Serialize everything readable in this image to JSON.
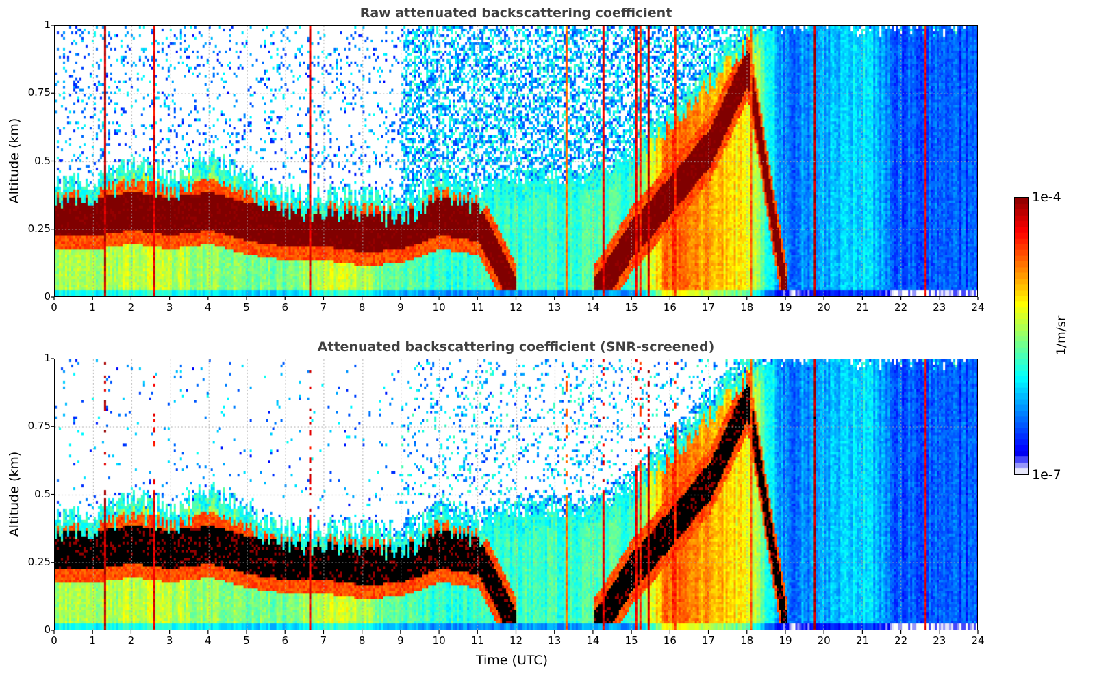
{
  "chart_data": [
    {
      "type": "heatmap",
      "title": "Raw attenuated backscattering coefficient",
      "xlabel": "",
      "ylabel": "Altitude (km)",
      "xlim": [
        0,
        24
      ],
      "ylim": [
        0,
        1
      ],
      "xticks": [
        "0",
        "1",
        "2",
        "3",
        "4",
        "5",
        "6",
        "7",
        "8",
        "9",
        "10",
        "11",
        "12",
        "13",
        "14",
        "15",
        "16",
        "17",
        "18",
        "19",
        "20",
        "21",
        "22",
        "23",
        "24"
      ],
      "yticks": [
        "0",
        "0.25",
        "0.5",
        "0.75",
        "1"
      ],
      "grid": true,
      "screened": false,
      "profile": {
        "description": "per-hour approximate boundary-layer top (km), cloud/aerosol base (km) and surface log10 backscatter level",
        "hours": [
          0,
          1,
          2,
          3,
          4,
          5,
          6,
          7,
          8,
          9,
          10,
          11,
          12,
          13,
          14,
          15,
          16,
          17,
          18,
          19,
          20,
          21,
          22,
          23,
          24
        ],
        "layer_top_km": [
          0.42,
          0.42,
          0.5,
          0.45,
          0.52,
          0.45,
          0.38,
          0.38,
          0.38,
          0.35,
          0.44,
          0.4,
          0.45,
          0.45,
          0.45,
          0.55,
          0.7,
          0.85,
          1.0,
          1.0,
          1.0,
          1.0,
          1.0,
          1.0,
          1.0
        ],
        "dense_layer_center_km": [
          0.3,
          0.3,
          0.32,
          0.3,
          0.32,
          0.28,
          0.26,
          0.26,
          0.24,
          0.25,
          0.3,
          0.28,
          0,
          0,
          0,
          0.22,
          0.38,
          0.55,
          0.85,
          0,
          0,
          0,
          0,
          0,
          0
        ],
        "surface_level_log10": [
          -5.4,
          -5.5,
          -5.3,
          -5.4,
          -5.5,
          -5.6,
          -5.6,
          -5.3,
          -5.4,
          -5.7,
          -5.8,
          -5.8,
          -5.8,
          -5.8,
          -5.7,
          -5.8,
          -4.6,
          -4.9,
          -5.2,
          -6.4,
          -6.2,
          -6.0,
          -6.5,
          -6.5,
          -6.5
        ]
      }
    },
    {
      "type": "heatmap",
      "title": "Attenuated backscattering coefficient (SNR-screened)",
      "xlabel": "Time (UTC)",
      "ylabel": "Altitude (km)",
      "xlim": [
        0,
        24
      ],
      "ylim": [
        0,
        1
      ],
      "xticks": [
        "0",
        "1",
        "2",
        "3",
        "4",
        "5",
        "6",
        "7",
        "8",
        "9",
        "10",
        "11",
        "12",
        "13",
        "14",
        "15",
        "16",
        "17",
        "18",
        "19",
        "20",
        "21",
        "22",
        "23",
        "24"
      ],
      "yticks": [
        "0",
        "0.25",
        "0.5",
        "0.75",
        "1"
      ],
      "grid": true,
      "screened": true
    }
  ],
  "colorbar": {
    "label": "1/m/sr",
    "max_label": "1e-4",
    "min_label": "1e-7",
    "range_log10": [
      -7,
      -4
    ],
    "colormap": "jet",
    "saturated_color": "#000000"
  }
}
